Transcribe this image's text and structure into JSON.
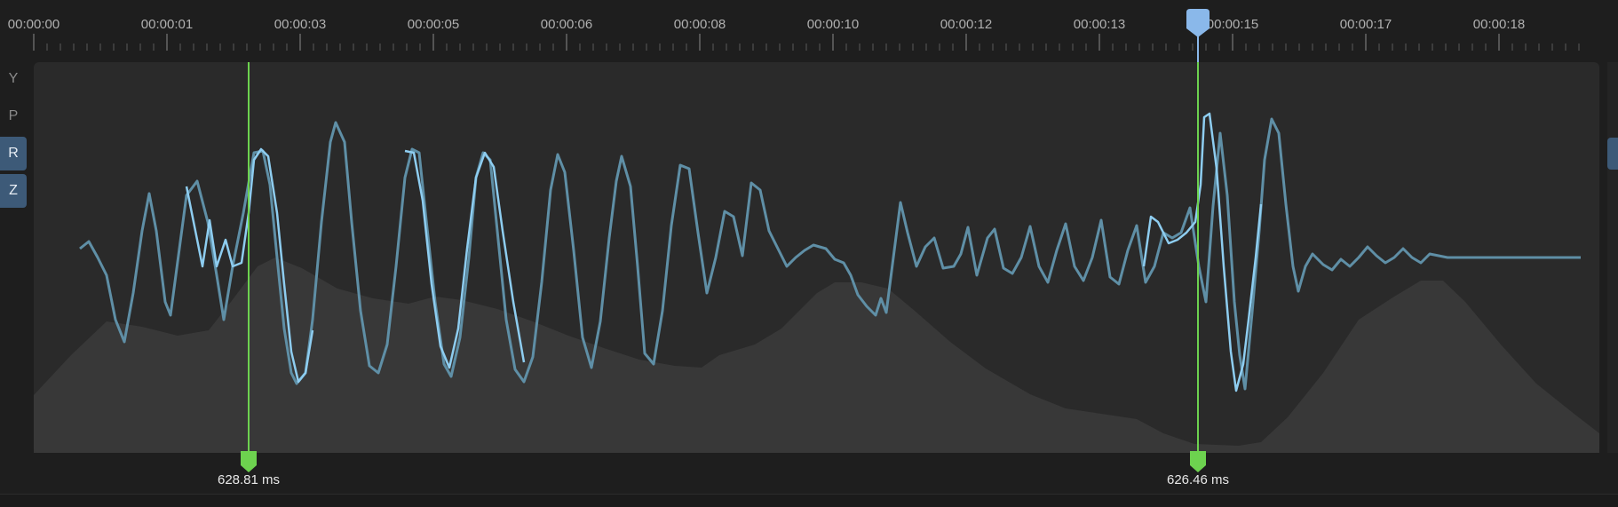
{
  "timeline": {
    "tick_labels": [
      "00:00:00",
      "00:00:01",
      "00:00:03",
      "00:00:05",
      "00:00:06",
      "00:00:08",
      "00:00:10",
      "00:00:12",
      "00:00:13",
      "00:00:15",
      "00:00:17",
      "00:00:18"
    ]
  },
  "channel_tabs": [
    {
      "label": "Y",
      "active": false
    },
    {
      "label": "P",
      "active": false
    },
    {
      "label": "R",
      "active": true
    },
    {
      "label": "Z",
      "active": true
    }
  ],
  "markers": [
    {
      "label": "628.81 ms",
      "color": "#6dd24f"
    },
    {
      "label": "626.46 ms",
      "color": "#6dd24f"
    }
  ],
  "colors": {
    "plot_bg": "#2a2a2a",
    "area_fill": "#3a3a3a",
    "signal_primary": "#8ecdf0",
    "signal_secondary": "#5f8fa6",
    "marker": "#6dd24f",
    "playhead": "#8ab8ea"
  }
}
